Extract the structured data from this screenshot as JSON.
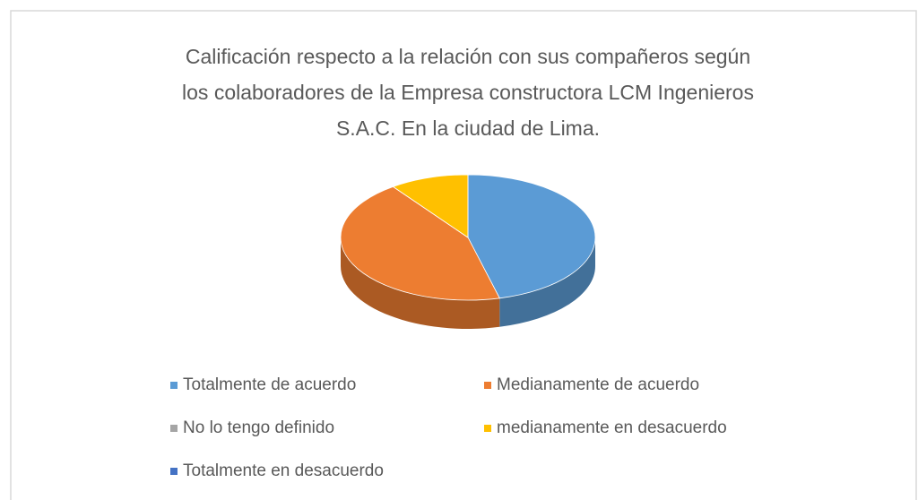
{
  "chart_data": {
    "type": "pie",
    "title": [
      "Calificación respecto a la relación con sus compañeros según",
      "los colaboradores de la Empresa constructora LCM Ingenieros",
      "S.A.C. En la ciudad de Lima."
    ],
    "categories": [
      "Totalmente de acuerdo",
      "Medianamente de acuerdo",
      "No lo tengo definido",
      "medianamente en desacuerdo",
      "Totalmente en desacuerdo"
    ],
    "values": [
      46,
      44,
      0,
      10,
      0
    ],
    "colors": [
      "#5b9bd5",
      "#ed7d31",
      "#a5a5a5",
      "#ffc000",
      "#4472c4"
    ],
    "legend": "bottom"
  }
}
